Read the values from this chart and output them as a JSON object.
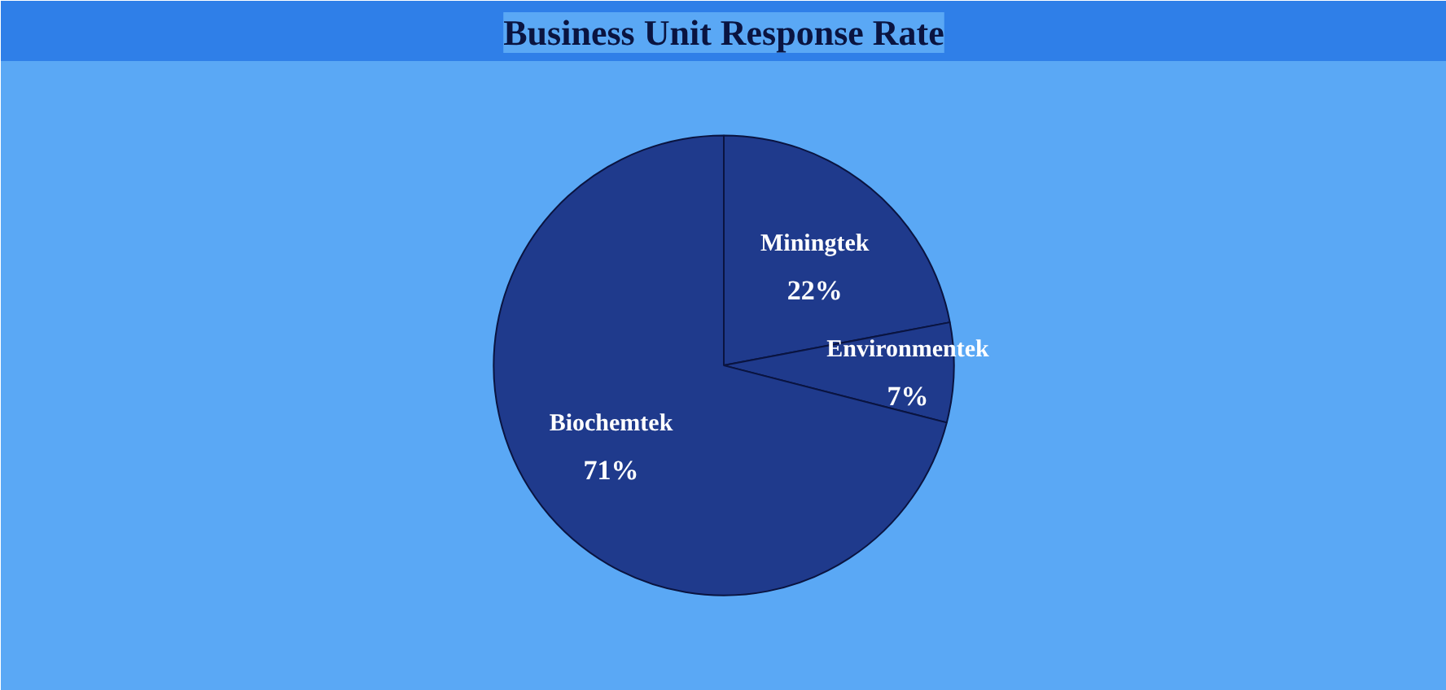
{
  "chart_data": {
    "type": "pie",
    "title": "Business Unit Response Rate",
    "categories": [
      "Miningtek",
      "Environmentek",
      "Biochemtek"
    ],
    "values": [
      22,
      7,
      71
    ],
    "colors": [
      "#1f3a8c",
      "#1f3a8c",
      "#1f3a8c"
    ],
    "value_labels": [
      "22%",
      "7%",
      "71%"
    ]
  }
}
